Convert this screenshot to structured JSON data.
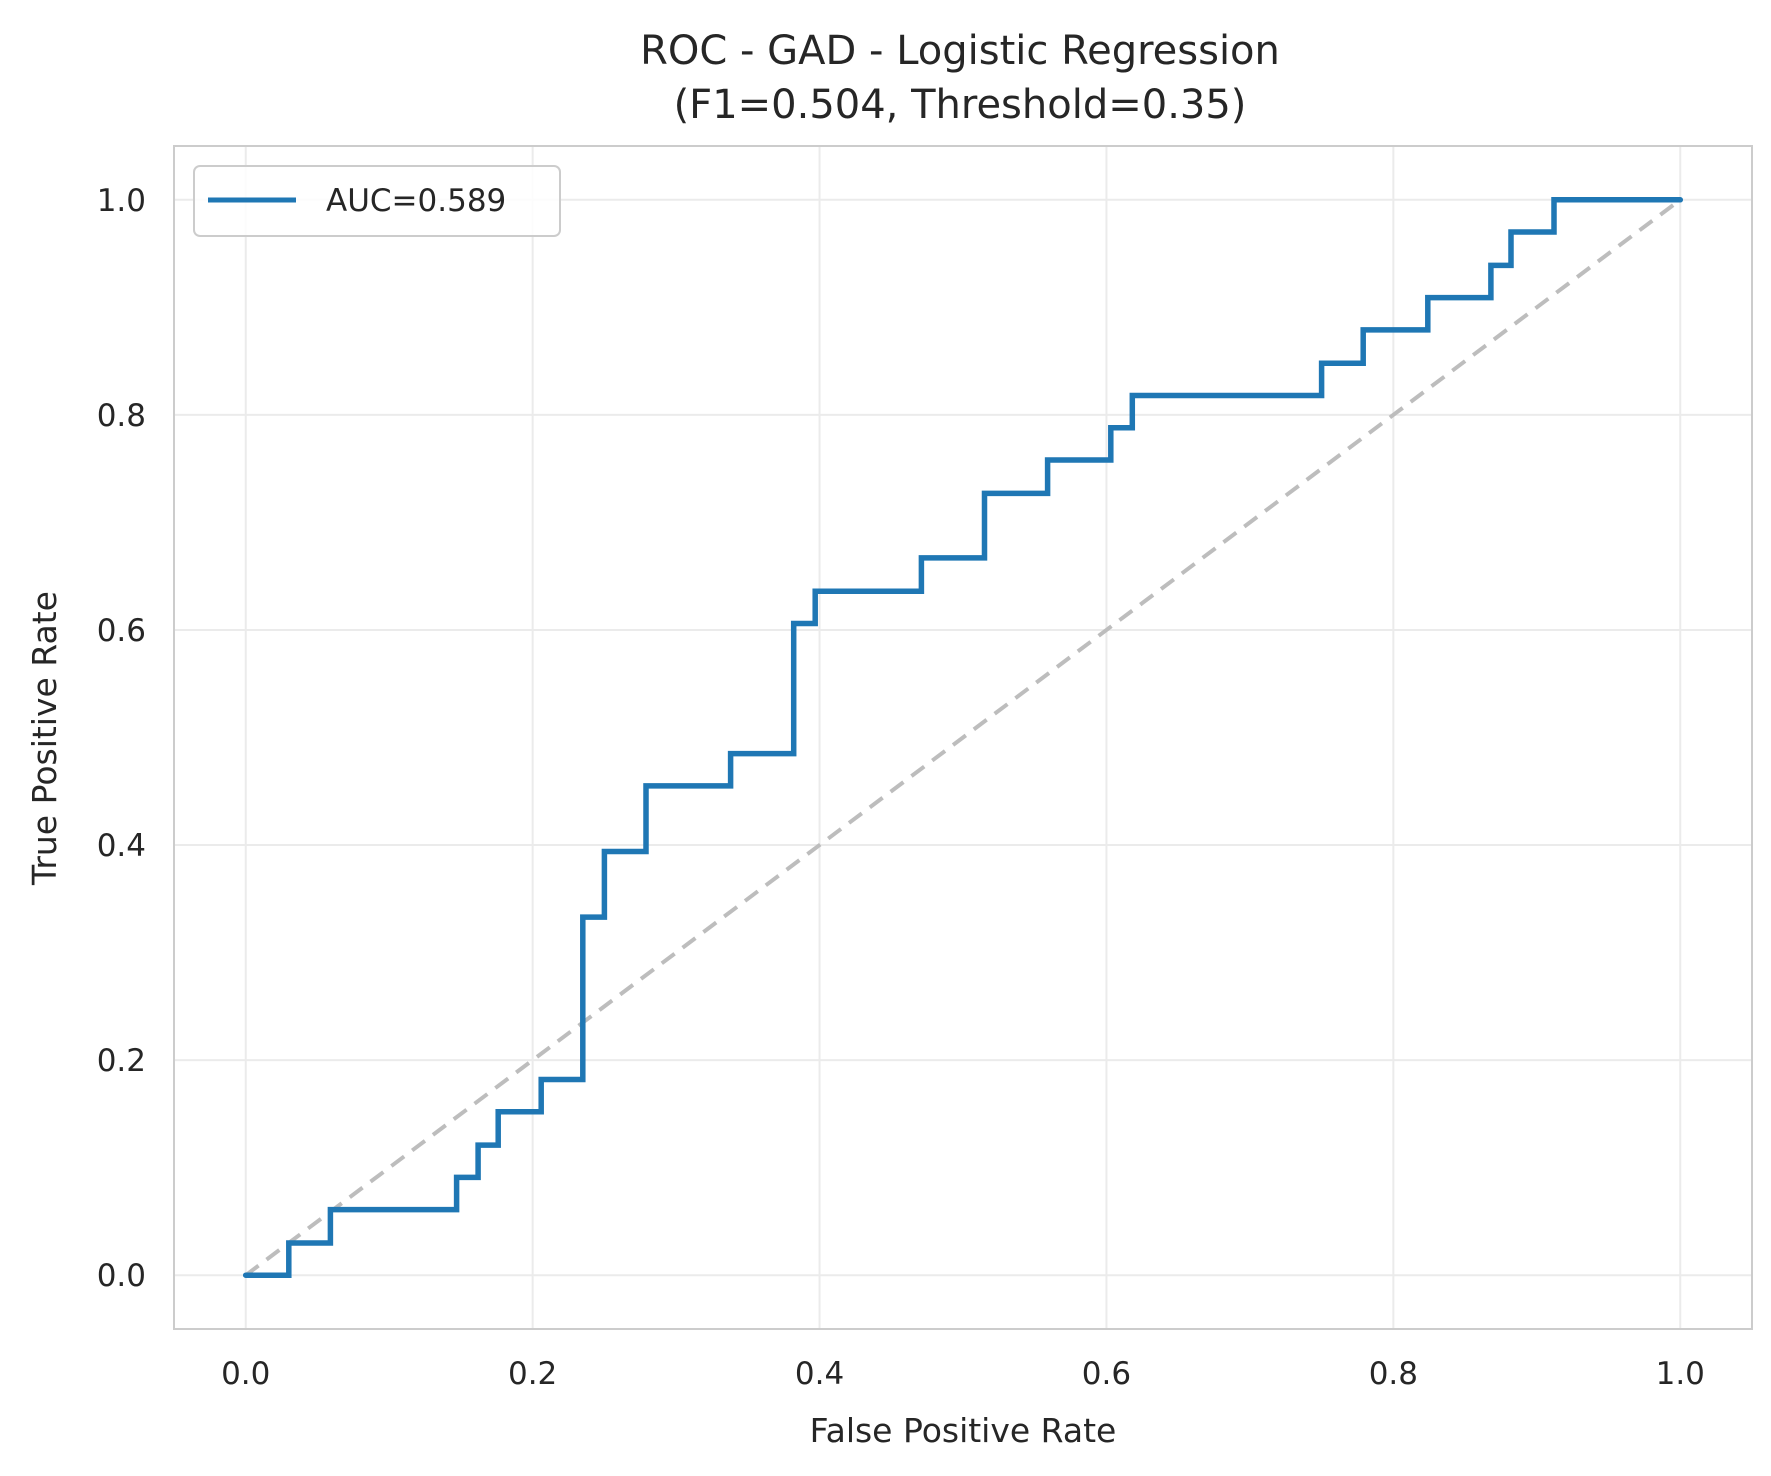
{
  "chart_data": {
    "type": "line",
    "title_line1": "ROC - GAD - Logistic Regression",
    "title_line2": "(F1=0.504, Threshold=0.35)",
    "xlabel": "False Positive Rate",
    "ylabel": "True Positive Rate",
    "xlim": [
      -0.05,
      1.05
    ],
    "ylim": [
      -0.05,
      1.05
    ],
    "xticks": [
      0.0,
      0.2,
      0.4,
      0.6,
      0.8,
      1.0
    ],
    "yticks": [
      0.0,
      0.2,
      0.4,
      0.6,
      0.8,
      1.0
    ],
    "grid": true,
    "legend_position": "top-left",
    "series": [
      {
        "name": "AUC=0.589",
        "color": "#1f77b4",
        "step": true,
        "x": [
          0.0,
          0.0,
          0.03,
          0.03,
          0.059,
          0.059,
          0.147,
          0.147,
          0.162,
          0.162,
          0.176,
          0.176,
          0.206,
          0.206,
          0.235,
          0.235,
          0.25,
          0.25,
          0.279,
          0.279,
          0.338,
          0.338,
          0.382,
          0.382,
          0.397,
          0.397,
          0.471,
          0.471,
          0.515,
          0.515,
          0.559,
          0.559,
          0.603,
          0.603,
          0.618,
          0.618,
          0.75,
          0.75,
          0.779,
          0.779,
          0.824,
          0.824,
          0.868,
          0.868,
          0.882,
          0.882,
          0.912,
          0.912,
          1.0
        ],
        "y": [
          0.0,
          0.0,
          0.0,
          0.03,
          0.03,
          0.061,
          0.061,
          0.091,
          0.091,
          0.121,
          0.121,
          0.152,
          0.152,
          0.182,
          0.182,
          0.333,
          0.333,
          0.394,
          0.394,
          0.455,
          0.455,
          0.485,
          0.485,
          0.606,
          0.606,
          0.636,
          0.636,
          0.667,
          0.667,
          0.727,
          0.727,
          0.758,
          0.758,
          0.788,
          0.788,
          0.818,
          0.818,
          0.848,
          0.848,
          0.879,
          0.879,
          0.909,
          0.909,
          0.939,
          0.939,
          0.97,
          0.97,
          1.0,
          1.0
        ]
      }
    ],
    "reference_line": {
      "color": "#bdbdbd",
      "style": "dashed",
      "x": [
        0.0,
        1.0
      ],
      "y": [
        0.0,
        1.0
      ]
    }
  }
}
